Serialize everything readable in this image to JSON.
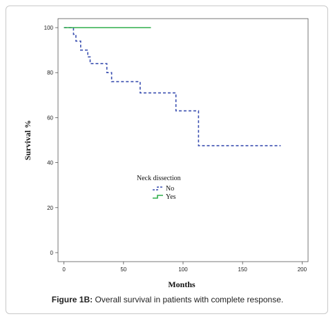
{
  "caption": {
    "label": "Figure 1B:",
    "text": " Overall survival in patients with complete response."
  },
  "colors": {
    "no": "#3a4fb0",
    "yes": "#2fae4a",
    "axis": "#555555",
    "plot_bg": "#ffffff"
  },
  "chart_data": {
    "type": "line",
    "chart_style": "kaplan-meier step",
    "title": "",
    "xlabel": "Months",
    "ylabel": "Survival %",
    "xlim": [
      -5,
      205
    ],
    "ylim": [
      -4,
      104
    ],
    "xticks": [
      0,
      50,
      100,
      150,
      200
    ],
    "yticks": [
      0,
      20,
      40,
      60,
      80,
      100
    ],
    "grid": false,
    "legend_title": "Neck dissection",
    "legend_position": "center",
    "series": [
      {
        "name": "No",
        "key": "no",
        "style": "dashed",
        "points": [
          [
            0,
            100
          ],
          [
            8,
            100
          ],
          [
            8,
            97
          ],
          [
            10,
            97
          ],
          [
            10,
            94
          ],
          [
            14,
            94
          ],
          [
            14,
            90
          ],
          [
            20,
            90
          ],
          [
            20,
            87
          ],
          [
            22,
            87
          ],
          [
            22,
            84
          ],
          [
            28,
            84
          ],
          [
            28,
            84
          ],
          [
            36,
            84
          ],
          [
            36,
            80
          ],
          [
            40,
            80
          ],
          [
            40,
            76
          ],
          [
            64,
            76
          ],
          [
            64,
            71
          ],
          [
            94,
            71
          ],
          [
            94,
            63
          ],
          [
            113,
            63
          ],
          [
            113,
            47.5
          ],
          [
            182,
            47.5
          ]
        ]
      },
      {
        "name": "Yes",
        "key": "yes",
        "style": "solid",
        "points": [
          [
            0,
            100
          ],
          [
            73,
            100
          ]
        ]
      }
    ]
  }
}
